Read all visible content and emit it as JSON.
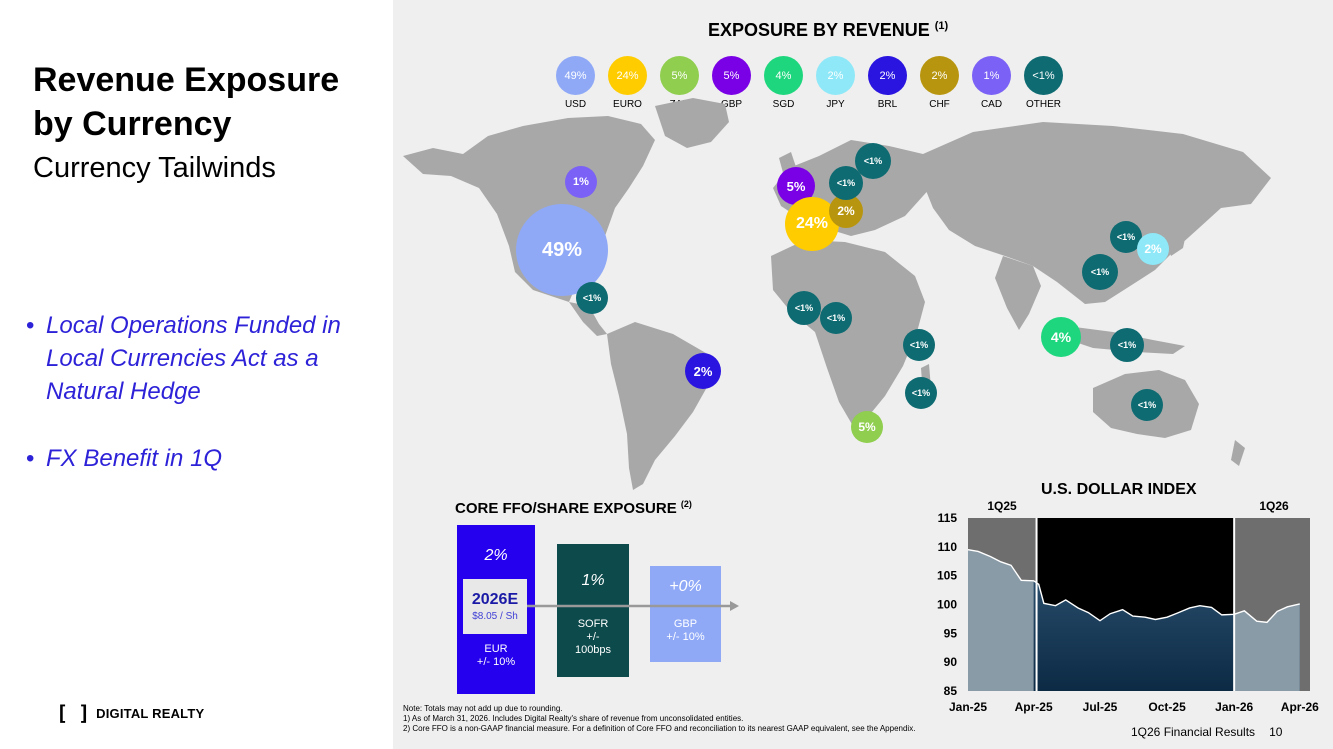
{
  "left": {
    "title_line1": "Revenue Exposure",
    "title_line2": "by Currency",
    "subtitle": "Currency Tailwinds",
    "bullets": [
      "Local Operations Funded in Local Currencies Act as a Natural Hedge",
      "FX Benefit in 1Q"
    ],
    "logo_mark": "[ ]",
    "logo_text": "DIGITAL REALTY"
  },
  "revenue": {
    "title": "EXPOSURE BY REVENUE",
    "title_note": "(1)",
    "legend": [
      {
        "value": "49%",
        "label": "USD",
        "color": "#8fa9f7"
      },
      {
        "value": "24%",
        "label": "EURO",
        "color": "#ffcc00"
      },
      {
        "value": "5%",
        "label": "ZAR",
        "color": "#8fce4e"
      },
      {
        "value": "5%",
        "label": "GBP",
        "color": "#7a00e6"
      },
      {
        "value": "4%",
        "label": "SGD",
        "color": "#1ed67d"
      },
      {
        "value": "2%",
        "label": "JPY",
        "color": "#8fe8f7"
      },
      {
        "value": "2%",
        "label": "BRL",
        "color": "#2a14e0"
      },
      {
        "value": "2%",
        "label": "CHF",
        "color": "#b8950f"
      },
      {
        "value": "1%",
        "label": "CAD",
        "color": "#7b61f5"
      },
      {
        "value": "<1%",
        "label": "OTHER",
        "color": "#0e6b72"
      }
    ],
    "bubbles": [
      {
        "label": "49%",
        "color": "#8fa9f7"
      },
      {
        "label": "1%",
        "color": "#7b61f5"
      },
      {
        "label": "<1%",
        "color": "#0e6b72"
      },
      {
        "label": "2%",
        "color": "#2a14e0"
      },
      {
        "label": "5%",
        "color": "#7a00e6"
      },
      {
        "label": "24%",
        "color": "#ffcc00"
      },
      {
        "label": "2%",
        "color": "#b8950f"
      },
      {
        "label": "<1%",
        "color": "#0e6b72"
      },
      {
        "label": "<1%",
        "color": "#0e6b72"
      },
      {
        "label": "<1%",
        "color": "#0e6b72"
      },
      {
        "label": "<1%",
        "color": "#0e6b72"
      },
      {
        "label": "<1%",
        "color": "#0e6b72"
      },
      {
        "label": "<1%",
        "color": "#0e6b72"
      },
      {
        "label": "5%",
        "color": "#8fce4e"
      },
      {
        "label": "4%",
        "color": "#1ed67d"
      },
      {
        "label": "<1%",
        "color": "#0e6b72"
      },
      {
        "label": "<1%",
        "color": "#0e6b72"
      },
      {
        "label": "2%",
        "color": "#8fe8f7"
      },
      {
        "label": "<1%",
        "color": "#0e6b72"
      },
      {
        "label": "<1%",
        "color": "#0e6b72"
      },
      {
        "label": "<1%",
        "color": "#0e6b72"
      }
    ]
  },
  "ffo": {
    "title": "CORE FFO/SHARE EXPOSURE",
    "title_note": "(2)",
    "center_title": "2026E",
    "center_sub": "$8.05 / Sh",
    "bars": [
      {
        "pct": "2%",
        "line1": "EUR",
        "line2": "+/- 10%",
        "line3": "",
        "color": "#2400ee"
      },
      {
        "pct": "1%",
        "line1": "SOFR",
        "line2": "+/-",
        "line3": "100bps",
        "color": "#0d4a4c"
      },
      {
        "pct": "+0%",
        "line1": "GBP",
        "line2": "+/- 10%",
        "line3": "",
        "color": "#8fa9f7"
      }
    ]
  },
  "usd_index": {
    "title": "U.S. DOLLAR  INDEX",
    "period_left": "1Q25",
    "period_right": "1Q26"
  },
  "chart_data": {
    "type": "area",
    "title": "U.S. DOLLAR  INDEX",
    "ylim": [
      85,
      115
    ],
    "yticks": [
      85,
      90,
      95,
      100,
      105,
      110,
      115
    ],
    "xticks": [
      "Jan-25",
      "Apr-25",
      "Jul-25",
      "Oct-25",
      "Jan-26",
      "Apr-26"
    ],
    "x": [
      "2025-01-01",
      "2025-01-15",
      "2025-02-01",
      "2025-02-15",
      "2025-03-01",
      "2025-03-15",
      "2025-04-01",
      "2025-04-08",
      "2025-04-15",
      "2025-05-01",
      "2025-05-15",
      "2025-06-01",
      "2025-06-15",
      "2025-07-01",
      "2025-07-15",
      "2025-08-01",
      "2025-08-15",
      "2025-09-01",
      "2025-09-15",
      "2025-10-01",
      "2025-10-15",
      "2025-11-01",
      "2025-11-15",
      "2025-12-01",
      "2025-12-15",
      "2026-01-01",
      "2026-01-15",
      "2026-02-01",
      "2026-02-15",
      "2026-03-01",
      "2026-03-15",
      "2026-04-01"
    ],
    "series": [
      {
        "values": [
          109.5,
          109.2,
          108.3,
          107.4,
          106.8,
          104.2,
          104.1,
          103.5,
          100.2,
          99.8,
          100.8,
          99.4,
          98.6,
          97.2,
          98.4,
          99.1,
          98.0,
          97.8,
          97.4,
          97.8,
          98.5,
          99.4,
          99.8,
          99.5,
          98.2,
          98.3,
          98.9,
          97.1,
          96.9,
          98.8,
          99.6,
          100.1
        ]
      }
    ]
  },
  "notes": [
    "Note:  Totals may not add up due to rounding.",
    "1)     As of March 31, 2026.  Includes Digital Realty's share of revenue from unconsolidated entities.",
    "2)     Core FFO is a non-GAAP financial measure.  For a definition of Core FFO and reconciliation to its nearest GAAP equivalent, see the Appendix."
  ],
  "footer": {
    "text": "1Q26 Financial Results",
    "page": "10"
  }
}
